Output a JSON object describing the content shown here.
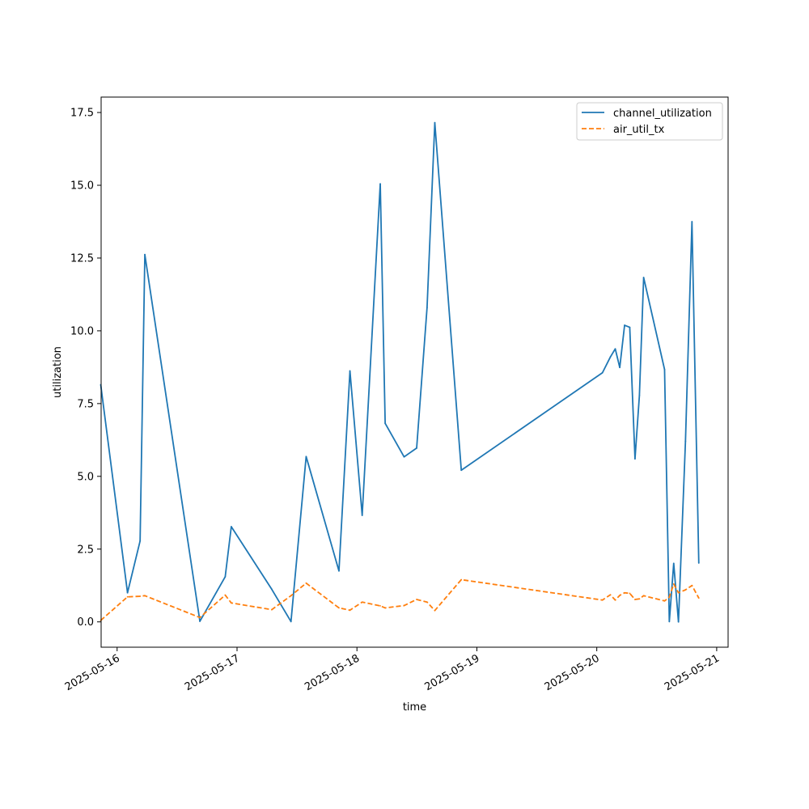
{
  "chart_data": {
    "type": "line",
    "title": "",
    "xlabel": "time",
    "ylabel": "utilization",
    "x_type": "datetime",
    "xlim": [
      "2025-05-15T20:48",
      "2025-05-21T02:17"
    ],
    "ylim": [
      -0.87,
      18.03
    ],
    "x_ticks": [
      "2025-05-16",
      "2025-05-17",
      "2025-05-18",
      "2025-05-19",
      "2025-05-20",
      "2025-05-21"
    ],
    "y_ticks": [
      0.0,
      2.5,
      5.0,
      7.5,
      10.0,
      12.5,
      15.0,
      17.5
    ],
    "y_tick_labels": [
      "0.0",
      "2.5",
      "5.0",
      "7.5",
      "10.0",
      "12.5",
      "15.0",
      "17.5"
    ],
    "grid": false,
    "legend_position": "top-right",
    "series": [
      {
        "name": "channel_utilization",
        "color": "#1f77b4",
        "style": "solid",
        "points": [
          {
            "x": "2025-05-15T20:43",
            "y": 8.15
          },
          {
            "x": "2025-05-16T02:05",
            "y": 1.0
          },
          {
            "x": "2025-05-16T04:36",
            "y": 2.78
          },
          {
            "x": "2025-05-16T05:33",
            "y": 12.62
          },
          {
            "x": "2025-05-16T16:34",
            "y": 0.02
          },
          {
            "x": "2025-05-16T21:38",
            "y": 1.55
          },
          {
            "x": "2025-05-16T22:51",
            "y": 3.27
          },
          {
            "x": "2025-05-17T06:57",
            "y": 1.12
          },
          {
            "x": "2025-05-17T10:48",
            "y": 0.01
          },
          {
            "x": "2025-05-17T13:50",
            "y": 5.68
          },
          {
            "x": "2025-05-17T20:24",
            "y": 1.75
          },
          {
            "x": "2025-05-17T22:36",
            "y": 8.62
          },
          {
            "x": "2025-05-18T01:03",
            "y": 3.66
          },
          {
            "x": "2025-05-18T04:40",
            "y": 15.05
          },
          {
            "x": "2025-05-18T05:39",
            "y": 6.82
          },
          {
            "x": "2025-05-18T09:26",
            "y": 5.67
          },
          {
            "x": "2025-05-18T11:57",
            "y": 5.97
          },
          {
            "x": "2025-05-18T14:02",
            "y": 10.8
          },
          {
            "x": "2025-05-18T15:35",
            "y": 17.15
          },
          {
            "x": "2025-05-18T20:53",
            "y": 5.21
          },
          {
            "x": "2025-05-20T01:08",
            "y": 8.56
          },
          {
            "x": "2025-05-20T02:43",
            "y": 9.1
          },
          {
            "x": "2025-05-20T03:42",
            "y": 9.38
          },
          {
            "x": "2025-05-20T04:36",
            "y": 8.74
          },
          {
            "x": "2025-05-20T05:34",
            "y": 10.19
          },
          {
            "x": "2025-05-20T06:36",
            "y": 10.12
          },
          {
            "x": "2025-05-20T07:39",
            "y": 5.6
          },
          {
            "x": "2025-05-20T08:32",
            "y": 7.78
          },
          {
            "x": "2025-05-20T09:23",
            "y": 11.83
          },
          {
            "x": "2025-05-20T13:34",
            "y": 8.67
          },
          {
            "x": "2025-05-20T14:31",
            "y": 0.01
          },
          {
            "x": "2025-05-20T15:24",
            "y": 2.01
          },
          {
            "x": "2025-05-20T16:21",
            "y": 0.0
          },
          {
            "x": "2025-05-20T17:45",
            "y": 6.2
          },
          {
            "x": "2025-05-20T19:03",
            "y": 13.75
          },
          {
            "x": "2025-05-20T20:25",
            "y": 2.02
          }
        ]
      },
      {
        "name": "air_util_tx",
        "color": "#ff7f0e",
        "style": "dashed",
        "points": [
          {
            "x": "2025-05-15T20:43",
            "y": 0.05
          },
          {
            "x": "2025-05-16T02:05",
            "y": 0.86
          },
          {
            "x": "2025-05-16T04:36",
            "y": 0.88
          },
          {
            "x": "2025-05-16T05:33",
            "y": 0.9
          },
          {
            "x": "2025-05-16T16:34",
            "y": 0.15
          },
          {
            "x": "2025-05-16T21:38",
            "y": 0.92
          },
          {
            "x": "2025-05-16T22:51",
            "y": 0.65
          },
          {
            "x": "2025-05-17T06:57",
            "y": 0.42
          },
          {
            "x": "2025-05-17T10:48",
            "y": 0.9
          },
          {
            "x": "2025-05-17T13:50",
            "y": 1.33
          },
          {
            "x": "2025-05-17T20:24",
            "y": 0.48
          },
          {
            "x": "2025-05-17T22:36",
            "y": 0.4
          },
          {
            "x": "2025-05-18T01:03",
            "y": 0.68
          },
          {
            "x": "2025-05-18T04:40",
            "y": 0.55
          },
          {
            "x": "2025-05-18T05:39",
            "y": 0.48
          },
          {
            "x": "2025-05-18T09:26",
            "y": 0.56
          },
          {
            "x": "2025-05-18T11:57",
            "y": 0.77
          },
          {
            "x": "2025-05-18T14:02",
            "y": 0.68
          },
          {
            "x": "2025-05-18T15:35",
            "y": 0.39
          },
          {
            "x": "2025-05-18T20:53",
            "y": 1.45
          },
          {
            "x": "2025-05-20T01:08",
            "y": 0.75
          },
          {
            "x": "2025-05-20T02:43",
            "y": 0.93
          },
          {
            "x": "2025-05-20T03:42",
            "y": 0.75
          },
          {
            "x": "2025-05-20T04:36",
            "y": 0.91
          },
          {
            "x": "2025-05-20T05:34",
            "y": 1.0
          },
          {
            "x": "2025-05-20T06:36",
            "y": 0.98
          },
          {
            "x": "2025-05-20T07:39",
            "y": 0.77
          },
          {
            "x": "2025-05-20T08:32",
            "y": 0.79
          },
          {
            "x": "2025-05-20T09:23",
            "y": 0.9
          },
          {
            "x": "2025-05-20T13:34",
            "y": 0.72
          },
          {
            "x": "2025-05-20T14:31",
            "y": 0.85
          },
          {
            "x": "2025-05-20T15:24",
            "y": 1.3
          },
          {
            "x": "2025-05-20T16:21",
            "y": 1.0
          },
          {
            "x": "2025-05-20T17:45",
            "y": 1.1
          },
          {
            "x": "2025-05-20T19:03",
            "y": 1.25
          },
          {
            "x": "2025-05-20T20:25",
            "y": 0.82
          }
        ]
      }
    ]
  }
}
